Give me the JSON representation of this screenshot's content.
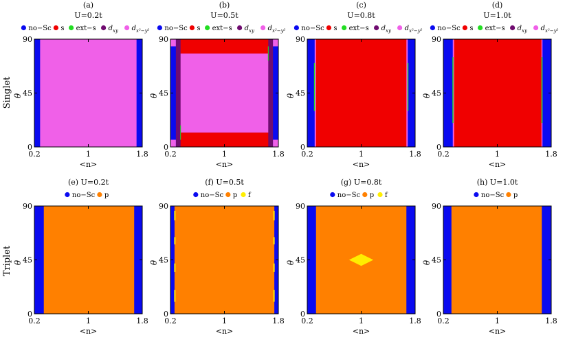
{
  "colors": {
    "no-Sc": "#0a0af0",
    "s": "#f00000",
    "ext-s": "#22dd22",
    "dxy": "#700c70",
    "dx2y2": "#f060e8",
    "p": "#ff8000",
    "f": "#ffee00"
  },
  "row_labels": [
    "Singlet",
    "Triplet"
  ],
  "chart_data": [
    {
      "type": "heatmap",
      "panel_label": "(a)",
      "title": "U=0.2t",
      "legend": [
        "no−Sc",
        "s",
        "ext−s",
        "d_xy",
        "d_x2−y2"
      ],
      "xlabel": "<n>",
      "ylabel": "θ",
      "xticks": [
        "0.2",
        "1",
        "1.8"
      ],
      "yticks": [
        "0",
        "45",
        "90"
      ],
      "xlim": [
        0.2,
        1.8
      ],
      "ylim": [
        0,
        90
      ],
      "phase_regions": "no-Sc for <n> < 0.28 and > 1.72; d_x2-y2 in between"
    },
    {
      "type": "heatmap",
      "panel_label": "(b)",
      "title": "U=0.5t",
      "legend": [
        "no−Sc",
        "s",
        "ext−s",
        "d_xy",
        "d_x2−y2"
      ],
      "xlabel": "<n>",
      "ylabel": "θ",
      "xticks": [
        "0.2",
        "1",
        "1.8"
      ],
      "yticks": [
        "0",
        "45",
        "90"
      ],
      "xlim": [
        0.2,
        1.8
      ],
      "ylim": [
        0,
        90
      ],
      "phase_regions": "s at high and low θ; d_x2-y2 central; d_xy and no-Sc at edges"
    },
    {
      "type": "heatmap",
      "panel_label": "(c)",
      "title": "U=0.8t",
      "legend": [
        "no−Sc",
        "s",
        "ext−s",
        "d_xy",
        "d_x2−y2"
      ],
      "xlabel": "<n>",
      "ylabel": "θ",
      "xticks": [
        "0.2",
        "1",
        "1.8"
      ],
      "yticks": [
        "0",
        "45",
        "90"
      ],
      "xlim": [
        0.2,
        1.8
      ],
      "ylim": [
        0,
        90
      ],
      "phase_regions": "s dominant; no-Sc at edges; thin d_x2-y2 / ext-s boundaries"
    },
    {
      "type": "heatmap",
      "panel_label": "(d)",
      "title": "U=1.0t",
      "legend": [
        "no−Sc",
        "s",
        "ext−s",
        "d_xy",
        "d_x2−y2"
      ],
      "xlabel": "<n>",
      "ylabel": "θ",
      "xticks": [
        "0.2",
        "1",
        "1.8"
      ],
      "yticks": [
        "0",
        "45",
        "90"
      ],
      "xlim": [
        0.2,
        1.8
      ],
      "ylim": [
        0,
        90
      ],
      "phase_regions": "s dominant; no-Sc at edges; thin ext-s / d_x2-y2 boundaries"
    },
    {
      "type": "heatmap",
      "panel_label": "(e)",
      "title": "U=0.2t",
      "legend": [
        "no−Sc",
        "p"
      ],
      "xlabel": "<n>",
      "ylabel": "θ",
      "xticks": [
        "0.2",
        "1",
        "1.8"
      ],
      "yticks": [
        "0",
        "45",
        "90"
      ],
      "xlim": [
        0.2,
        1.8
      ],
      "ylim": [
        0,
        90
      ],
      "phase_regions": "p between <n> ≈ 0.34 and 1.68; no-Sc outside"
    },
    {
      "type": "heatmap",
      "panel_label": "(f)",
      "title": "U=0.5t",
      "legend": [
        "no−Sc",
        "p",
        "f"
      ],
      "xlabel": "<n>",
      "ylabel": "θ",
      "xticks": [
        "0.2",
        "1",
        "1.8"
      ],
      "yticks": [
        "0",
        "45",
        "90"
      ],
      "xlim": [
        0.2,
        1.8
      ],
      "ylim": [
        0,
        90
      ],
      "phase_regions": "p central; no-Sc at edges; f specks at boundaries"
    },
    {
      "type": "heatmap",
      "panel_label": "(g)",
      "title": "U=0.8t",
      "legend": [
        "no−Sc",
        "p",
        "f"
      ],
      "xlabel": "<n>",
      "ylabel": "θ",
      "xticks": [
        "0.2",
        "1",
        "1.8"
      ],
      "yticks": [
        "0",
        "45",
        "90"
      ],
      "xlim": [
        0.2,
        1.8
      ],
      "ylim": [
        0,
        90
      ],
      "phase_regions": "p central; f diamond near <n>=1, θ=45; no-Sc at edges"
    },
    {
      "type": "heatmap",
      "panel_label": "(h)",
      "title": "U=1.0t",
      "legend": [
        "no−Sc",
        "p"
      ],
      "xlabel": "<n>",
      "ylabel": "θ",
      "xticks": [
        "0.2",
        "1",
        "1.8"
      ],
      "yticks": [
        "0",
        "45",
        "90"
      ],
      "xlim": [
        0.2,
        1.8
      ],
      "ylim": [
        0,
        90
      ],
      "phase_regions": "p central; no-Sc at edges"
    }
  ]
}
